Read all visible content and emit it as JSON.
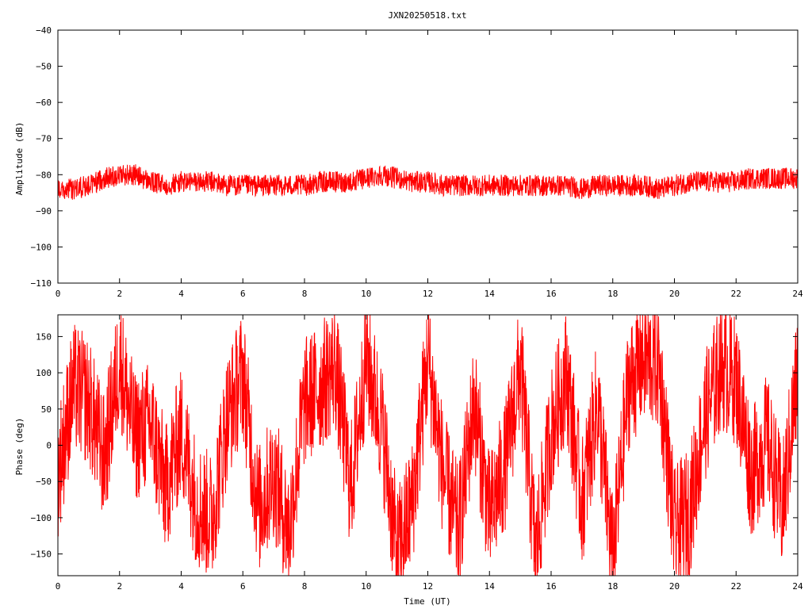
{
  "title": "JXN20250518.txt",
  "colors": {
    "series": "#ff0000",
    "axes": "#000000",
    "background": "#ffffff"
  },
  "chart_data": [
    {
      "type": "line",
      "ylabel": "Amplitude (dB)",
      "xlabel": "",
      "xlim": [
        0,
        24
      ],
      "ylim": [
        -110,
        -40
      ],
      "xticks": [
        0,
        2,
        4,
        6,
        8,
        10,
        12,
        14,
        16,
        18,
        20,
        22,
        24
      ],
      "yticks": [
        -110,
        -100,
        -90,
        -80,
        -70,
        -60,
        -50,
        -40
      ],
      "grid": false,
      "series": [
        {
          "x": [
            0,
            0.5,
            1,
            1.5,
            2,
            2.5,
            3,
            3.5,
            4,
            4.5,
            5,
            5.5,
            6,
            6.5,
            7,
            7.5,
            8,
            8.5,
            9,
            9.5,
            10,
            10.5,
            11,
            11.5,
            12,
            12.5,
            13,
            13.5,
            14,
            14.5,
            15,
            15.5,
            16,
            16.5,
            17,
            17.5,
            18,
            18.5,
            19,
            19.5,
            20,
            20.5,
            21,
            21.5,
            22,
            22.5,
            23,
            23.5,
            24
          ],
          "values": [
            -84,
            -84,
            -83,
            -81,
            -80,
            -80,
            -82,
            -83,
            -82,
            -82,
            -82,
            -83,
            -83,
            -83,
            -83,
            -83,
            -83,
            -82,
            -82,
            -82,
            -81,
            -80,
            -81,
            -82,
            -82,
            -83,
            -83,
            -83,
            -83,
            -83,
            -83,
            -83,
            -83,
            -83,
            -84,
            -83,
            -83,
            -83,
            -83,
            -84,
            -83,
            -82,
            -82,
            -82,
            -82,
            -81,
            -81,
            -81,
            -81
          ],
          "spread": 3
        }
      ]
    },
    {
      "type": "line",
      "ylabel": "Phase (deg)",
      "xlabel": "Time (UT)",
      "xlim": [
        0,
        24
      ],
      "ylim": [
        -180,
        180
      ],
      "xticks": [
        0,
        2,
        4,
        6,
        8,
        10,
        12,
        14,
        16,
        18,
        20,
        22,
        24
      ],
      "yticks": [
        -150,
        -100,
        -50,
        0,
        50,
        100,
        150
      ],
      "grid": false,
      "series": [
        {
          "x": [
            0,
            0.5,
            1,
            1.5,
            2,
            2.5,
            3,
            3.5,
            4,
            4.5,
            5,
            5.5,
            6,
            6.5,
            7,
            7.5,
            8,
            8.5,
            9,
            9.5,
            10,
            10.5,
            11,
            11.5,
            12,
            12.5,
            13,
            13.5,
            14,
            14.5,
            15,
            15.5,
            16,
            16.5,
            17,
            17.5,
            18,
            18.5,
            19,
            19.5,
            20,
            20.5,
            21,
            21.5,
            22,
            22.5,
            23,
            23.5,
            24
          ],
          "values": [
            -40,
            80,
            60,
            -20,
            120,
            10,
            30,
            -60,
            20,
            -80,
            -100,
            40,
            100,
            -90,
            -40,
            -120,
            60,
            80,
            110,
            -60,
            120,
            30,
            -150,
            -80,
            120,
            -40,
            -120,
            60,
            -100,
            -30,
            110,
            -150,
            20,
            100,
            -80,
            60,
            -160,
            80,
            120,
            110,
            -120,
            -90,
            40,
            110,
            90,
            -40,
            10,
            -90,
            100
          ],
          "spread": 90
        }
      ]
    }
  ]
}
